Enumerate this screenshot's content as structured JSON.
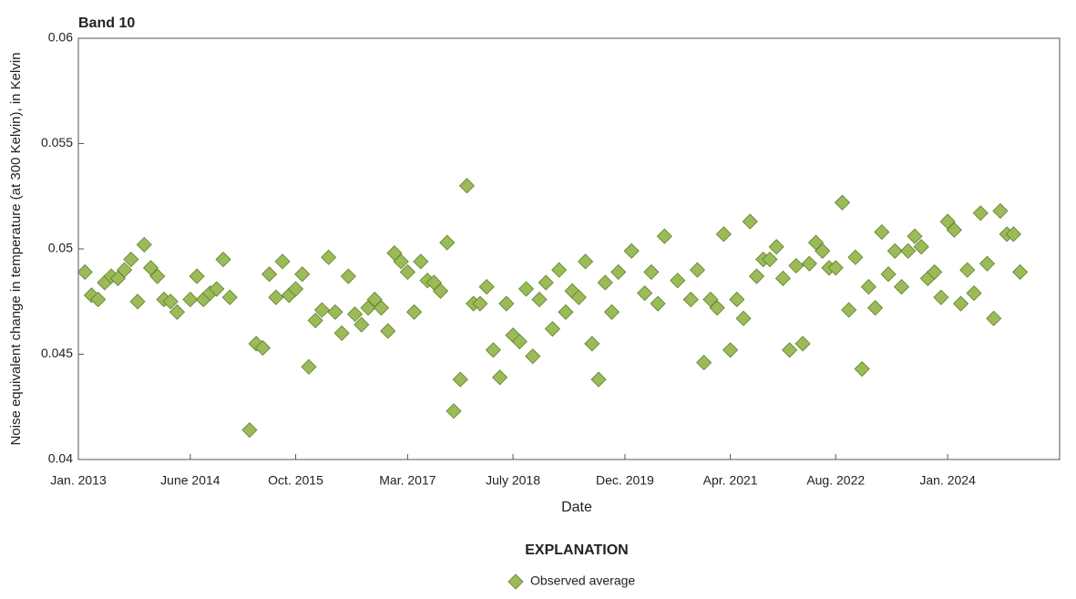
{
  "chart_data": {
    "type": "scatter",
    "title": "Band 10",
    "ylabel": "Noise equivalent change in temperature (at 300 Kelvin), in Kelvin",
    "xlabel": "Date",
    "legend_title": "EXPLANATION",
    "xlim": [
      "2013-01",
      "2025-06"
    ],
    "xticks": [
      {
        "value": "2013-01",
        "label": "Jan. 2013"
      },
      {
        "value": "2014-06",
        "label": "June 2014"
      },
      {
        "value": "2015-10",
        "label": "Oct. 2015"
      },
      {
        "value": "2017-03",
        "label": "Mar. 2017"
      },
      {
        "value": "2018-07",
        "label": "July 2018"
      },
      {
        "value": "2019-12",
        "label": "Dec. 2019"
      },
      {
        "value": "2021-04",
        "label": "Apr. 2021"
      },
      {
        "value": "2022-08",
        "label": "Aug. 2022"
      },
      {
        "value": "2024-01",
        "label": "Jan. 2024"
      }
    ],
    "ylim": [
      0.04,
      0.06
    ],
    "yticks": [
      0.04,
      0.045,
      0.05,
      0.055,
      0.06
    ],
    "x": [
      "2013-02",
      "2013-03",
      "2013-04",
      "2013-05",
      "2013-06",
      "2013-07",
      "2013-08",
      "2013-09",
      "2013-10",
      "2013-11",
      "2013-12",
      "2014-01",
      "2014-02",
      "2014-03",
      "2014-04",
      "2014-06",
      "2014-07",
      "2014-08",
      "2014-09",
      "2014-10",
      "2014-11",
      "2014-12",
      "2015-03",
      "2015-04",
      "2015-05",
      "2015-06",
      "2015-07",
      "2015-08",
      "2015-09",
      "2015-10",
      "2015-11",
      "2015-12",
      "2016-01",
      "2016-02",
      "2016-03",
      "2016-04",
      "2016-05",
      "2016-06",
      "2016-07",
      "2016-08",
      "2016-09",
      "2016-10",
      "2016-11",
      "2016-12",
      "2017-01",
      "2017-02",
      "2017-03",
      "2017-04",
      "2017-05",
      "2017-06",
      "2017-07",
      "2017-08",
      "2017-09",
      "2017-10",
      "2017-11",
      "2017-12",
      "2018-01",
      "2018-02",
      "2018-03",
      "2018-04",
      "2018-05",
      "2018-06",
      "2018-07",
      "2018-08",
      "2018-09",
      "2018-10",
      "2018-11",
      "2018-12",
      "2019-01",
      "2019-02",
      "2019-03",
      "2019-04",
      "2019-05",
      "2019-06",
      "2019-07",
      "2019-08",
      "2019-09",
      "2019-10",
      "2019-11",
      "2020-01",
      "2020-03",
      "2020-04",
      "2020-05",
      "2020-06",
      "2020-08",
      "2020-10",
      "2020-11",
      "2020-12",
      "2021-01",
      "2021-02",
      "2021-03",
      "2021-04",
      "2021-05",
      "2021-06",
      "2021-07",
      "2021-08",
      "2021-09",
      "2021-10",
      "2021-11",
      "2021-12",
      "2022-01",
      "2022-02",
      "2022-03",
      "2022-04",
      "2022-05",
      "2022-06",
      "2022-07",
      "2022-08",
      "2022-09",
      "2022-10",
      "2022-11",
      "2022-12",
      "2023-01",
      "2023-02",
      "2023-03",
      "2023-04",
      "2023-05",
      "2023-06",
      "2023-07",
      "2023-08",
      "2023-09",
      "2023-10",
      "2023-11",
      "2023-12",
      "2024-01",
      "2024-02",
      "2024-03",
      "2024-04",
      "2024-05",
      "2024-06",
      "2024-07",
      "2024-08",
      "2024-09",
      "2024-10",
      "2024-11",
      "2024-12"
    ],
    "series": [
      {
        "name": "Observed average",
        "color": "#9bbb59",
        "values": [
          0.0489,
          0.0478,
          0.0476,
          0.0484,
          0.0487,
          0.0486,
          0.049,
          0.0495,
          0.0475,
          0.0502,
          0.0491,
          0.0487,
          0.0476,
          0.0475,
          0.047,
          0.0476,
          0.0487,
          0.0476,
          0.0479,
          0.0481,
          0.0495,
          0.0477,
          0.0414,
          0.0455,
          0.0453,
          0.0488,
          0.0477,
          0.0494,
          0.0478,
          0.0481,
          0.0488,
          0.0444,
          0.0466,
          0.0471,
          0.0496,
          0.047,
          0.046,
          0.0487,
          0.0469,
          0.0464,
          0.0472,
          0.0476,
          0.0472,
          0.0461,
          0.0498,
          0.0494,
          0.0489,
          0.047,
          0.0494,
          0.0485,
          0.0484,
          0.048,
          0.0503,
          0.0423,
          0.0438,
          0.053,
          0.0474,
          0.0474,
          0.0482,
          0.0452,
          0.0439,
          0.0474,
          0.0459,
          0.0456,
          0.0481,
          0.0449,
          0.0476,
          0.0484,
          0.0462,
          0.049,
          0.047,
          0.048,
          0.0477,
          0.0494,
          0.0455,
          0.0438,
          0.0484,
          0.047,
          0.0489,
          0.0499,
          0.0479,
          0.0489,
          0.0474,
          0.0506,
          0.0485,
          0.0476,
          0.049,
          0.0446,
          0.0476,
          0.0472,
          0.0507,
          0.0452,
          0.0476,
          0.0467,
          0.0513,
          0.0487,
          0.0495,
          0.0495,
          0.0501,
          0.0486,
          0.0452,
          0.0492,
          0.0455,
          0.0493,
          0.0503,
          0.0499,
          0.0491,
          0.0491,
          0.0522,
          0.0471,
          0.0496,
          0.0443,
          0.0482,
          0.0472,
          0.0508,
          0.0488,
          0.0499,
          0.0482,
          0.0499,
          0.0506,
          0.0501,
          0.0486,
          0.0489,
          0.0477,
          0.0513,
          0.0509,
          0.0474,
          0.049,
          0.0479,
          0.0517,
          0.0493,
          0.0467,
          0.0518,
          0.0507,
          0.0507,
          0.0489
        ]
      }
    ]
  }
}
